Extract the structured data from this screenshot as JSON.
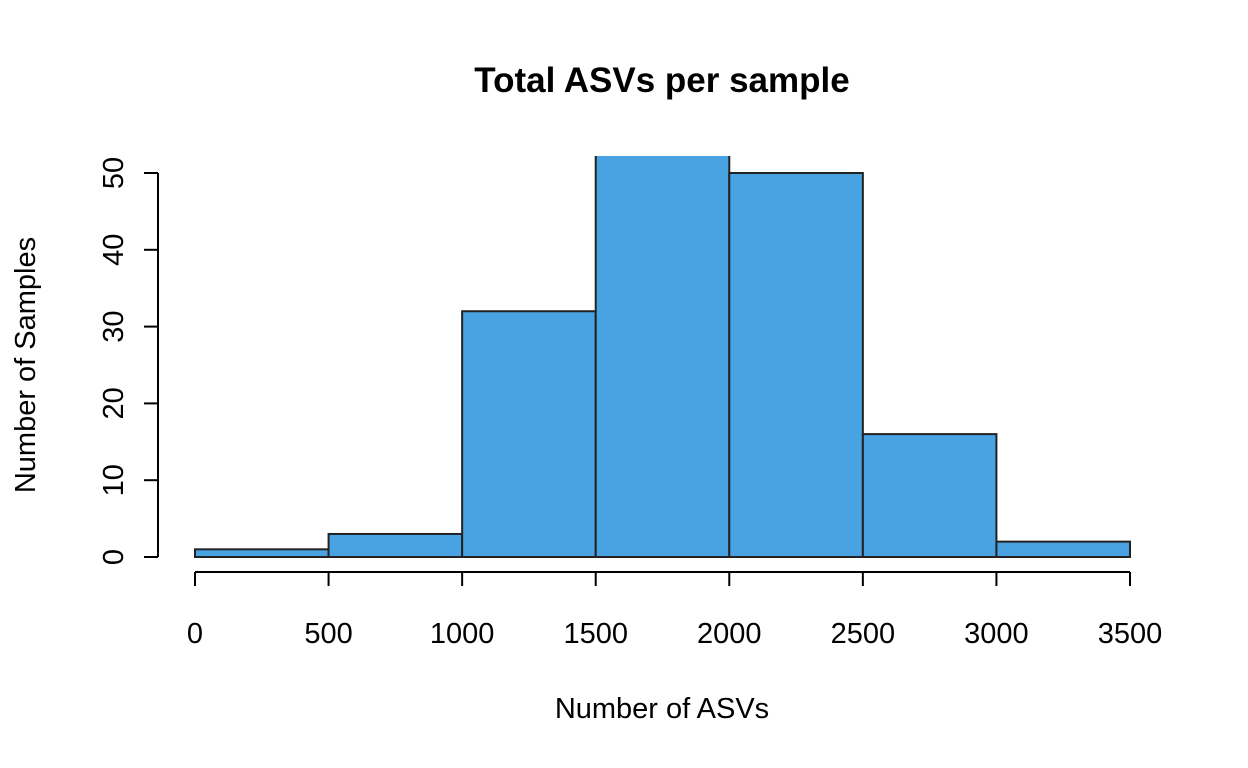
{
  "chart_data": {
    "type": "bar",
    "title": "Total ASVs per sample",
    "xlabel": "Number of ASVs",
    "ylabel": "Number of Samples",
    "bins": [
      {
        "start": 0,
        "end": 500,
        "count": 1
      },
      {
        "start": 500,
        "end": 1000,
        "count": 3
      },
      {
        "start": 1000,
        "end": 1500,
        "count": 32
      },
      {
        "start": 1500,
        "end": 2000,
        "count": 54
      },
      {
        "start": 2000,
        "end": 2500,
        "count": 50
      },
      {
        "start": 2500,
        "end": 3000,
        "count": 16
      },
      {
        "start": 3000,
        "end": 3500,
        "count": 2
      }
    ],
    "xticks": [
      "0",
      "500",
      "1000",
      "1500",
      "2000",
      "2500",
      "3000",
      "3500"
    ],
    "yticks": [
      "0",
      "10",
      "20",
      "30",
      "40",
      "50"
    ],
    "xlim": [
      0,
      3500
    ],
    "ylim": [
      0,
      50
    ],
    "bar_color": "#49A3E3",
    "border_color": "#222222"
  }
}
